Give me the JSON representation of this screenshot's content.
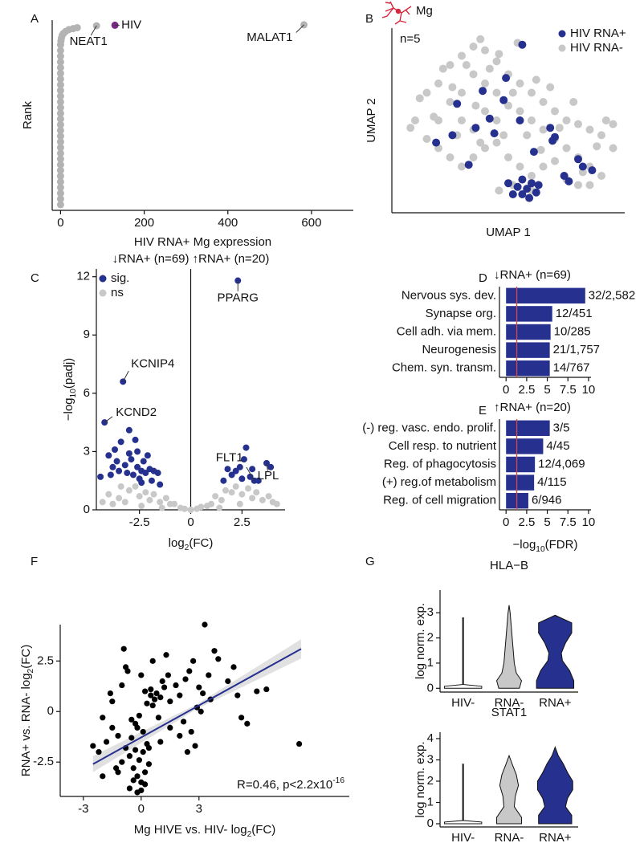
{
  "chart_data": [
    {
      "panel": "A",
      "type": "scatter",
      "x_label": "HIV RNA+ Mg expression",
      "y_label": "Rank",
      "xlim": [
        -20,
        700
      ],
      "ylim": [
        0,
        100
      ],
      "xticks": [
        0,
        200,
        400,
        600
      ],
      "series": [
        {
          "color": "#b3b3b3",
          "x": [
            0,
            0,
            0,
            0,
            0,
            0,
            0,
            0,
            0,
            0,
            0,
            0,
            0,
            0,
            0,
            0,
            0,
            0,
            0,
            0,
            0,
            0,
            0,
            0,
            0,
            0,
            0,
            0,
            0,
            1,
            2,
            4,
            7,
            12,
            20,
            30,
            40,
            86,
            582
          ],
          "values": [
            3,
            6,
            9,
            12,
            15,
            18,
            21,
            24,
            27,
            30,
            33,
            36,
            39,
            42,
            45,
            48,
            51,
            54,
            57,
            60,
            63,
            66,
            69,
            72,
            75,
            78,
            81,
            84,
            87,
            89,
            90.5,
            92,
            93,
            94,
            95,
            95.5,
            96,
            97,
            97.5
          ]
        },
        {
          "color": "#7a2a86",
          "x": [
            130
          ],
          "values": [
            97.3
          ]
        }
      ],
      "annotations": [
        {
          "text": "NEAT1",
          "x": 86,
          "y": 97
        },
        {
          "text": "HIV",
          "x": 130,
          "y": 97.3
        },
        {
          "text": "MALAT1",
          "x": 582,
          "y": 97.5
        }
      ]
    },
    {
      "panel": "B",
      "type": "scatter",
      "title": "Mg",
      "annotation": "n=5",
      "x_label": "UMAP 1",
      "y_label": "UMAP 2",
      "xlim": [
        0,
        10
      ],
      "ylim": [
        0,
        10
      ],
      "legend": "top-right",
      "series": [
        {
          "name": "HIV RNA+",
          "color": "#26318f",
          "x": [
            5.6,
            5.8,
            6,
            5.4,
            5.9,
            6.2,
            5.2,
            5.6,
            6.3,
            5,
            3.6,
            4.2,
            2.8,
            2.6,
            4.8,
            5.5,
            6.8,
            7,
            6.9,
            8,
            8.2,
            8.6,
            7.4,
            7.6,
            4.9,
            5.6,
            1.9,
            3.3,
            4.4,
            6.1,
            3.9
          ],
          "values": [
            1,
            1.3,
            1.6,
            1.4,
            0.8,
            1.1,
            1,
            1.8,
            1.5,
            1.6,
            4.6,
            5.1,
            5.9,
            4.2,
            6.1,
            5,
            4.6,
            4.1,
            3.9,
            2.9,
            2.5,
            2.3,
            2,
            1.7,
            7.3,
            9.1,
            3.8,
            2.6,
            4.3,
            3.3,
            6.6
          ]
        },
        {
          "name": "HIV RNA-",
          "color": "#c8c8c8",
          "x": [
            1,
            1.5,
            2,
            2.5,
            3,
            3.5,
            4,
            4.5,
            5,
            5.5,
            6,
            6.5,
            7,
            7.5,
            8,
            8.5,
            9,
            9.5,
            2,
            2.5,
            3,
            3.5,
            4,
            4.5,
            3,
            3.5,
            4,
            4.5,
            5,
            5.5,
            6,
            6.5,
            7,
            7.5,
            8,
            8.5,
            1.5,
            2,
            2.5,
            3,
            3.5,
            4,
            4.5,
            5,
            5.5,
            6,
            6.5,
            7,
            7.5,
            8,
            8.5,
            9,
            9.5,
            2.2,
            3.2,
            4.2,
            5.2,
            6.2,
            6.8,
            5.8,
            4.8,
            3.8,
            2.8,
            1.8,
            1.2,
            2.6,
            6.4,
            7.2,
            8.2,
            5.2,
            4.6,
            6,
            3.6,
            4.6,
            8.8,
            9.2,
            7.8,
            5.4,
            3.8,
            0.8
          ],
          "values": [
            5,
            6.5,
            7,
            8,
            8.5,
            9,
            8.8,
            8.2,
            7.5,
            7,
            6.5,
            6,
            5.5,
            5,
            4.8,
            4.5,
            4.2,
            4.8,
            5,
            6,
            6.5,
            7.5,
            7,
            6.5,
            5,
            4.5,
            5.5,
            5,
            5.8,
            5.5,
            5,
            4.5,
            4,
            3.5,
            3,
            2.5,
            4,
            3.5,
            3,
            2.5,
            3,
            3.5,
            3.8,
            3,
            2.5,
            2,
            2.5,
            2.8,
            1.8,
            1.5,
            1.5,
            2,
            3.5,
            7.8,
            8,
            7.8,
            6.5,
            7.2,
            6.8,
            4.2,
            4.2,
            3.8,
            4.2,
            5.2,
            6.2,
            6.8,
            3.4,
            4.6,
            2.2,
            1.5,
            1.2,
            1.2,
            5.8,
            8.6,
            3.6,
            5,
            6,
            9.2,
            9.4,
            4.6
          ]
        }
      ]
    },
    {
      "panel": "C",
      "type": "scatter",
      "subtitles": [
        "↓RNA+ (n=69)",
        "↑RNA+ (n=20)"
      ],
      "x_label": [
        "log",
        "2",
        "(FC)"
      ],
      "y_label": [
        "−log",
        "10",
        "(padj)"
      ],
      "xlim": [
        -4.6,
        4.6
      ],
      "ylim": [
        0,
        12.4
      ],
      "xticks": [
        -2.5,
        0,
        2.5
      ],
      "yticks": [
        0,
        3,
        6,
        9,
        12
      ],
      "vline": 0,
      "legend": "top-left",
      "series": [
        {
          "name": "sig.",
          "color": "#26318f",
          "x": [
            -3.3,
            -4.2,
            -3,
            -2.7,
            -3.4,
            -4,
            -3.8,
            -3.5,
            -3.2,
            -2.9,
            -2.6,
            -2.4,
            -2.2,
            -2,
            -1.8,
            -1.6,
            -3.6,
            -3.1,
            -2.8,
            -2.5,
            -2.3,
            -2.1,
            -1.9,
            -3.9,
            -4.4,
            -3,
            -2.6,
            -2.4,
            -1.5,
            -3.7,
            2.3,
            3.1,
            3.7,
            2.4,
            2.2,
            2,
            1.8,
            2.6,
            2.9,
            3,
            2.5,
            3.3,
            3.9,
            1.6,
            2.7
          ],
          "values": [
            6.6,
            4.5,
            4.1,
            3.6,
            3.5,
            2.8,
            2.2,
            2,
            2.3,
            2.6,
            2.2,
            2,
            1.9,
            2.1,
            2,
            1.9,
            2.5,
            1.9,
            1.8,
            1.6,
            2.5,
            2.8,
            1.5,
            1.8,
            1.7,
            2.9,
            3,
            1.4,
            1.3,
            3.1,
            11.8,
            1.5,
            2.4,
            2.2,
            2,
            1.8,
            2.1,
            2.6,
            1.7,
            2.1,
            1.6,
            1.5,
            2.2,
            1.5,
            3.2
          ]
        },
        {
          "name": "ns",
          "color": "#c8c8c8",
          "x": [
            -4,
            -3.5,
            -3,
            -2.5,
            -2,
            -1.5,
            -1,
            -0.5,
            0,
            0.5,
            1,
            1.5,
            2,
            2.5,
            3,
            3.5,
            4,
            -4.3,
            -3.8,
            -3.2,
            -2.7,
            -2.2,
            -1.8,
            -1.2,
            -0.8,
            -0.3,
            0.3,
            0.8,
            1.2,
            1.7,
            2.2,
            2.8,
            3.2,
            3.8,
            4.2,
            -2.4,
            -1.4,
            1.4,
            2.4,
            -3.4
          ],
          "values": [
            0.8,
            0.6,
            1,
            0.7,
            0.5,
            0.4,
            0.3,
            0.1,
            0,
            0.15,
            0.3,
            0.5,
            0.9,
            0.8,
            0.6,
            0.5,
            0.4,
            0.4,
            0.3,
            0.4,
            1.2,
            0.9,
            0.8,
            0.6,
            0.3,
            0.05,
            0.05,
            0.2,
            0.7,
            1,
            1.2,
            1.1,
            0.9,
            0.7,
            0.3,
            0.2,
            0.1,
            0.1,
            0.3,
            1.2
          ]
        }
      ],
      "annotations": [
        {
          "text": "KCNIP4",
          "x": -3.3,
          "y": 6.6
        },
        {
          "text": "KCND2",
          "x": -4.2,
          "y": 4.5
        },
        {
          "text": "PPARG",
          "x": 2.3,
          "y": 11.8
        },
        {
          "text": "FLT1",
          "x": 3.1,
          "y": 1.5
        },
        {
          "text": "LPL",
          "x": 3.7,
          "y": 2.4
        }
      ]
    },
    {
      "panel": "D",
      "type": "bar",
      "orientation": "horizontal",
      "title": "↓RNA+ (n=69)",
      "categories": [
        "Nervous sys. dev.",
        "Synapse org.",
        "Cell adh. via mem.",
        "Neurogenesis",
        "Chem. syn. transm."
      ],
      "values": [
        9.6,
        5.6,
        5.4,
        5.3,
        5.3
      ],
      "counts": [
        "32/2,582",
        "12/451",
        "10/285",
        "21/1,757",
        "14/767"
      ],
      "color": "#26318f",
      "threshold": 1.3,
      "threshold_color": "#e0443a",
      "xlim": [
        -0.8,
        10.3
      ],
      "xticks": [
        0,
        2.5,
        5,
        7.5,
        10
      ]
    },
    {
      "panel": "E",
      "type": "bar",
      "orientation": "horizontal",
      "title": "↑RNA+ (n=20)",
      "x_label": [
        "−log",
        "10",
        "(FDR)"
      ],
      "categories": [
        "(-) reg. vasc. endo. prolif.",
        "Cell resp. to nutrient",
        "Reg. of phagocytosis",
        "(+) reg.of metabolism",
        "Reg. of cell migration"
      ],
      "values": [
        5.3,
        4.5,
        3.5,
        3.4,
        2.7
      ],
      "counts": [
        "3/5",
        "4/45",
        "12/4,069",
        "4/115",
        "6/946"
      ],
      "color": "#26318f",
      "threshold": 1.3,
      "threshold_color": "#e0443a",
      "xlim": [
        -0.8,
        10.3
      ],
      "xticks": [
        0,
        2.5,
        5,
        7.5,
        10
      ]
    },
    {
      "panel": "F",
      "type": "scatter",
      "x_label": [
        "Mg HIVE vs. HIV- log",
        "2",
        "(FC)"
      ],
      "y_label": [
        "RNA+ vs. RNA- log",
        "2",
        "(FC)"
      ],
      "xlim": [
        -4.2,
        10.8
      ],
      "ylim": [
        -4.2,
        4.3
      ],
      "xticks": [
        -3,
        0,
        3
      ],
      "yticks": [
        -2.5,
        0,
        2.5
      ],
      "series": [
        {
          "color": "#000000",
          "x": [
            -2.5,
            -2.2,
            -1.8,
            -1.5,
            -1.2,
            -1,
            -0.8,
            -0.6,
            -0.4,
            -0.2,
            0,
            0.2,
            0.4,
            -0.5,
            -0.3,
            -0.1,
            0.1,
            0.3,
            -0.6,
            -0.4,
            -0.2,
            0,
            0.2,
            -0.3,
            -0.1,
            0.1,
            -0.5,
            0.3,
            0.5,
            0.7,
            0.2,
            0.5,
            0.8,
            1,
            1.2,
            1.5,
            0.6,
            0.9,
            1.1,
            1.4,
            1.8,
            2,
            2.3,
            2.5,
            2.7,
            3,
            3.2,
            3.5,
            3.8,
            4,
            2.2,
            2.6,
            2.9,
            3.3,
            3.6,
            4.5,
            5,
            5.5,
            6,
            4.8,
            5.2,
            8.2,
            6.5,
            -1.5,
            -1,
            -2,
            -0.8,
            1,
            1.5,
            2,
            2.4,
            -1.2,
            -0.7,
            0.6,
            -2,
            -1.6,
            -1.3,
            0,
            0.4,
            1.3,
            2.8,
            3.1,
            -0.9,
            -0.2
          ],
          "values": [
            -1.7,
            -2,
            -1.5,
            -0.8,
            -1.2,
            -2.5,
            -1.8,
            -2.2,
            -2.8,
            -3.2,
            -3.5,
            -3,
            -2.6,
            -1.3,
            -1.9,
            -2.4,
            -2,
            -1.6,
            -3.8,
            -3.4,
            -4,
            -3.9,
            -3.6,
            -0.6,
            -0.2,
            -1,
            -0.4,
            0.4,
            0.8,
            0.6,
            1,
            1.1,
            0.9,
            0.7,
            1.2,
            0.5,
            0.3,
            -0.3,
            1.5,
            1.8,
            1.3,
            0.8,
            1.6,
            2,
            2.5,
            1.2,
            0.9,
            1.8,
            3,
            2.6,
            -0.5,
            -1,
            0.2,
            4.3,
            0.6,
            1.5,
            0.8,
            -0.6,
            1,
            2.2,
            -0.3,
            -1.6,
            1.1,
            0.5,
            1.3,
            -0.3,
            2.2,
            -1.5,
            -0.8,
            -1.2,
            -2,
            -3,
            2,
            2.5,
            -3.2,
            0.9,
            -2.8,
            1.8,
            -1.8,
            2.8,
            -1.7,
            0,
            3.1,
            -0.8
          ]
        }
      ],
      "fit": {
        "color": "#26318f",
        "x": [
          -2.5,
          8.3
        ],
        "values": [
          -2.6,
          3.1
        ]
      },
      "annotation": [
        "R=0.46, p<2.2x10",
        "-16"
      ]
    },
    {
      "panel": "G",
      "type": "violin",
      "title": "HLA−B",
      "y_label": "log norm. exp.",
      "categories": [
        "HIV-",
        "RNA-",
        "RNA+"
      ],
      "ylim": [
        -0.15,
        3.9
      ],
      "yticks": [
        0,
        1,
        2,
        3
      ],
      "violins": [
        {
          "color": "#ffffff",
          "y": [
            0,
            0.08,
            0.15,
            2.8
          ],
          "density": [
            0.9,
            0.9,
            0.02,
            0.02
          ]
        },
        {
          "color": "#c8c8c8",
          "y": [
            0,
            0.3,
            0.6,
            1,
            1.5,
            2,
            2.5,
            3,
            3.3
          ],
          "density": [
            0.5,
            0.6,
            0.35,
            0.25,
            0.2,
            0.15,
            0.1,
            0.05,
            0
          ]
        },
        {
          "color": "#26318f",
          "y": [
            0,
            0.3,
            0.7,
            1.1,
            1.4,
            1.8,
            2.2,
            2.6,
            2.9
          ],
          "density": [
            0.9,
            0.9,
            0.7,
            0.35,
            0.3,
            0.5,
            0.8,
            0.8,
            0
          ]
        }
      ]
    },
    {
      "type": "violin",
      "title": "STAT1",
      "y_label": "log norm. exp.",
      "categories": [
        "HIV-",
        "RNA-",
        "RNA+"
      ],
      "ylim": [
        -0.15,
        4.3
      ],
      "yticks": [
        0,
        1,
        2,
        3,
        4
      ],
      "violins": [
        {
          "color": "#ffffff",
          "y": [
            0,
            0.08,
            0.15,
            2.8
          ],
          "density": [
            0.9,
            0.9,
            0.02,
            0.02
          ]
        },
        {
          "color": "#c8c8c8",
          "y": [
            0,
            0.3,
            0.8,
            1.3,
            1.8,
            2.3,
            2.8,
            3.2
          ],
          "density": [
            0.6,
            0.6,
            0.25,
            0.3,
            0.45,
            0.35,
            0.15,
            0
          ]
        },
        {
          "color": "#26318f",
          "y": [
            0,
            0.4,
            0.8,
            1.2,
            1.6,
            2,
            2.4,
            2.8,
            3.2,
            3.6
          ],
          "density": [
            0.8,
            0.8,
            0.5,
            0.6,
            0.85,
            0.85,
            0.6,
            0.4,
            0.15,
            0
          ]
        }
      ]
    }
  ]
}
